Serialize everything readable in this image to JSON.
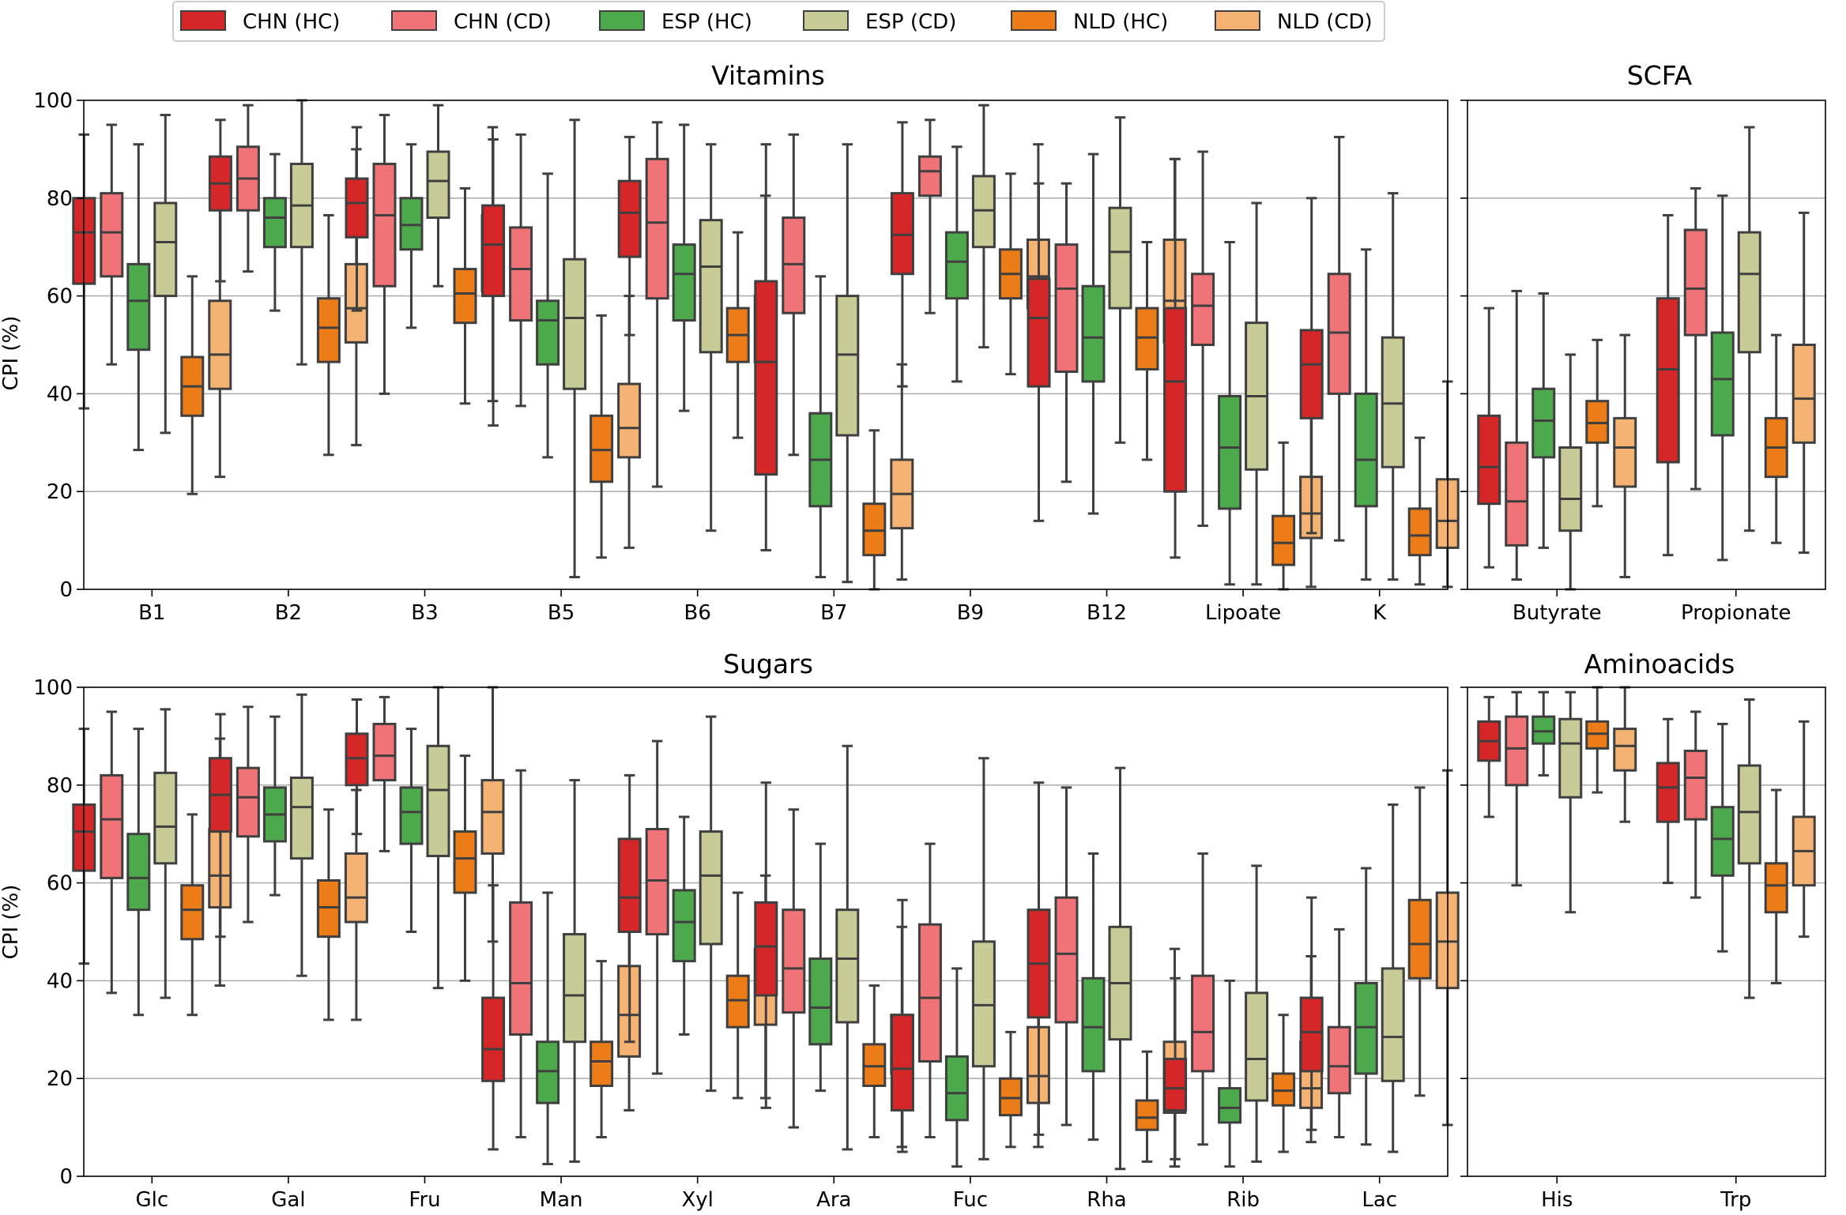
{
  "chart_data": {
    "type": "box",
    "ylabel": "CPI (%)",
    "ylim": [
      0,
      100
    ],
    "yticks": [
      0,
      20,
      40,
      60,
      80,
      100
    ],
    "grid": "horizontal",
    "legend_position": "top-left",
    "series": [
      {
        "name": "CHN (HC)",
        "color": "#d62728"
      },
      {
        "name": "CHN (CD)",
        "color": "#f07377"
      },
      {
        "name": "ESP (HC)",
        "color": "#4caa4c"
      },
      {
        "name": "ESP (CD)",
        "color": "#c7cc96"
      },
      {
        "name": "NLD (HC)",
        "color": "#ec7c17"
      },
      {
        "name": "NLD (CD)",
        "color": "#f4b373"
      }
    ],
    "panels": [
      {
        "title": "Vitamins",
        "categories": [
          "B1",
          "B2",
          "B3",
          "B5",
          "B6",
          "B7",
          "B9",
          "B12",
          "Lipoate",
          "K"
        ],
        "boxes": [
          [
            [
              37,
              62.5,
              73,
              80,
              93
            ],
            [
              46,
              64,
              73,
              81,
              95
            ],
            [
              28.5,
              49,
              59,
              66.5,
              91
            ],
            [
              32,
              60,
              71,
              79,
              97
            ],
            [
              19.5,
              35.5,
              41.5,
              47.5,
              64
            ],
            [
              23,
              41,
              48,
              59,
              80
            ]
          ],
          [
            [
              63,
              77.5,
              83,
              88.5,
              96
            ],
            [
              65,
              77.5,
              84,
              90.5,
              99
            ],
            [
              57,
              70,
              76,
              80,
              89
            ],
            [
              46,
              70,
              78.5,
              87,
              100
            ],
            [
              27.5,
              46.5,
              53.5,
              59.5,
              76.5
            ],
            [
              29.5,
              50.5,
              57.5,
              66.5,
              90
            ]
          ],
          [
            [
              57,
              72,
              79,
              84,
              94.5
            ],
            [
              40,
              62,
              76.5,
              87,
              97
            ],
            [
              53.5,
              69.5,
              74.5,
              80,
              91
            ],
            [
              62,
              76,
              83.5,
              89.5,
              99
            ],
            [
              38,
              54.5,
              60.5,
              65.5,
              82
            ],
            [
              38.5,
              61,
              69,
              76.5,
              94.5
            ]
          ],
          [
            [
              33.5,
              60,
              70.5,
              78.5,
              92
            ],
            [
              37.5,
              55,
              65.5,
              74,
              93
            ],
            [
              27,
              46,
              55,
              59,
              85
            ],
            [
              2.5,
              41,
              55.5,
              67.5,
              96
            ],
            [
              6.5,
              22,
              28.5,
              35.5,
              56
            ],
            [
              8.5,
              27,
              33,
              42,
              60
            ]
          ],
          [
            [
              52,
              68,
              77,
              83.5,
              92.5
            ],
            [
              21,
              59.5,
              75,
              88,
              95.5
            ],
            [
              36.5,
              55,
              64.5,
              70.5,
              95
            ],
            [
              12,
              48.5,
              66,
              75.5,
              91
            ],
            [
              31,
              46.5,
              52,
              57.5,
              73
            ],
            [
              32.5,
              46.5,
              54,
              60,
              80.5
            ]
          ],
          [
            [
              8,
              23.5,
              46.5,
              63,
              91
            ],
            [
              27.5,
              56.5,
              66.5,
              76,
              93
            ],
            [
              2.5,
              17,
              26.5,
              36,
              64
            ],
            [
              1.5,
              31.5,
              48,
              60,
              91
            ],
            [
              0,
              7,
              12,
              17.5,
              32.5
            ],
            [
              2,
              12.5,
              19.5,
              26.5,
              46
            ]
          ],
          [
            [
              41.5,
              64.5,
              72.5,
              81,
              95.5
            ],
            [
              56.5,
              80.5,
              85.5,
              88.5,
              96
            ],
            [
              42.5,
              59.5,
              67,
              73,
              90.5
            ],
            [
              49.5,
              70,
              77.5,
              84.5,
              99
            ],
            [
              44,
              59.5,
              64.5,
              69.5,
              85
            ],
            [
              42,
              57.5,
              64,
              71.5,
              91
            ]
          ],
          [
            [
              14,
              41.5,
              55.5,
              63.5,
              83
            ],
            [
              22,
              44.5,
              61.5,
              70.5,
              83
            ],
            [
              15.5,
              42.5,
              51.5,
              62,
              89
            ],
            [
              30,
              57.5,
              69,
              78,
              96.5
            ],
            [
              26.5,
              45,
              51.5,
              57.5,
              71
            ],
            [
              31,
              50.5,
              59,
              71.5,
              88
            ]
          ],
          [
            [
              6.5,
              20,
              42.5,
              57.5,
              88
            ],
            [
              13,
              50,
              58,
              64.5,
              89.5
            ],
            [
              1,
              16.5,
              29,
              39.5,
              71
            ],
            [
              1,
              24.5,
              39.5,
              54.5,
              79
            ],
            [
              0,
              5,
              9.5,
              15,
              30
            ],
            [
              0.5,
              10.5,
              15.5,
              23,
              40
            ]
          ],
          [
            [
              11.5,
              35,
              46,
              53,
              80
            ],
            [
              10,
              40,
              52.5,
              64.5,
              92.5
            ],
            [
              2,
              17,
              26.5,
              40,
              69.5
            ],
            [
              2,
              25,
              38,
              51.5,
              81
            ],
            [
              1,
              7,
              11,
              16.5,
              31
            ],
            [
              0.5,
              8.5,
              14,
              22.5,
              42.5
            ]
          ]
        ]
      },
      {
        "title": "SCFA",
        "categories": [
          "Butyrate",
          "Propionate"
        ],
        "boxes": [
          [
            [
              4.5,
              17.5,
              25,
              35.5,
              57.5
            ],
            [
              2,
              9,
              18,
              30,
              61
            ],
            [
              8.5,
              27,
              34.5,
              41,
              60.5
            ],
            [
              0,
              12,
              18.5,
              29,
              48
            ],
            [
              17,
              30,
              34,
              38.5,
              51
            ],
            [
              2.5,
              21,
              29,
              35,
              52
            ]
          ],
          [
            [
              7,
              26,
              45,
              59.5,
              76.5
            ],
            [
              20.5,
              52,
              61.5,
              73.5,
              82
            ],
            [
              6,
              31.5,
              43,
              52.5,
              80.5
            ],
            [
              12,
              48.5,
              64.5,
              73,
              94.5
            ],
            [
              9.5,
              23,
              29,
              35,
              52
            ],
            [
              7.5,
              30,
              39,
              50,
              77
            ]
          ]
        ]
      },
      {
        "title": "Sugars",
        "categories": [
          "Glc",
          "Gal",
          "Fru",
          "Man",
          "Xyl",
          "Ara",
          "Fuc",
          "Rha",
          "Rib",
          "Lac"
        ],
        "boxes": [
          [
            [
              43.5,
              62.5,
              70.5,
              76,
              91.5
            ],
            [
              37.5,
              61,
              73,
              82,
              95
            ],
            [
              33,
              54.5,
              61,
              70,
              91.5
            ],
            [
              36.5,
              64,
              71.5,
              82.5,
              95.5
            ],
            [
              33,
              48.5,
              54.5,
              59.5,
              74
            ],
            [
              39,
              55,
              61.5,
              71,
              89.5
            ]
          ],
          [
            [
              49,
              70.5,
              78,
              85.5,
              94.5
            ],
            [
              52,
              69.5,
              77.5,
              83.5,
              96
            ],
            [
              57.5,
              68.5,
              74,
              79.5,
              94
            ],
            [
              41,
              65,
              75.5,
              81.5,
              98.5
            ],
            [
              32,
              49,
              55,
              60.5,
              75
            ],
            [
              32,
              52,
              57,
              66,
              79
            ]
          ],
          [
            [
              70,
              80,
              85.5,
              90.5,
              97.5
            ],
            [
              66.5,
              81,
              86,
              92.5,
              98
            ],
            [
              50,
              68,
              74.5,
              79.5,
              91.5
            ],
            [
              38.5,
              65.5,
              79,
              88,
              100
            ],
            [
              40,
              58,
              65,
              70.5,
              86
            ],
            [
              48,
              66,
              74.5,
              81,
              100
            ]
          ],
          [
            [
              5.5,
              19.5,
              26,
              36.5,
              59.5
            ],
            [
              8,
              29,
              39.5,
              56,
              83
            ],
            [
              2.5,
              15,
              21.5,
              27.5,
              58
            ],
            [
              3,
              27.5,
              37,
              49.5,
              81
            ],
            [
              8,
              18.5,
              23.5,
              27.5,
              44
            ],
            [
              13.5,
              24.5,
              33,
              43,
              68.5
            ]
          ],
          [
            [
              27.5,
              50,
              57,
              69,
              82
            ],
            [
              21,
              49.5,
              60.5,
              71,
              89
            ],
            [
              29,
              44,
              52,
              58.5,
              73.5
            ],
            [
              17.5,
              47.5,
              61.5,
              70.5,
              94
            ],
            [
              16,
              30.5,
              36,
              41,
              58
            ],
            [
              16,
              31,
              40.5,
              46.5,
              61.5
            ]
          ],
          [
            [
              14,
              37,
              47,
              56,
              80.5
            ],
            [
              10,
              33.5,
              42.5,
              54.5,
              75
            ],
            [
              17.5,
              27,
              34.5,
              44.5,
              68
            ],
            [
              5.5,
              31.5,
              44.5,
              54.5,
              88
            ],
            [
              8,
              18.5,
              22.5,
              27,
              39
            ],
            [
              6,
              21,
              26.5,
              33,
              51
            ]
          ],
          [
            [
              5,
              13.5,
              22,
              33,
              56.5
            ],
            [
              8,
              23.5,
              36.5,
              51.5,
              68
            ],
            [
              2,
              11.5,
              17,
              24.5,
              42.5
            ],
            [
              3.5,
              22.5,
              35,
              48,
              85.5
            ],
            [
              6,
              12.5,
              16,
              20,
              29.5
            ],
            [
              6,
              15,
              20.5,
              30.5,
              54
            ]
          ],
          [
            [
              8.5,
              32.5,
              43.5,
              54.5,
              80.5
            ],
            [
              10.5,
              31.5,
              45.5,
              57,
              79.5
            ],
            [
              7.5,
              21.5,
              30.5,
              40.5,
              66
            ],
            [
              1.5,
              28,
              39.5,
              51,
              83.5
            ],
            [
              3,
              9.5,
              12,
              15.5,
              25.5
            ],
            [
              2,
              13,
              18,
              27.5,
              46.5
            ]
          ],
          [
            [
              3.5,
              13.5,
              18,
              24,
              40.5
            ],
            [
              6.5,
              21.5,
              29.5,
              41,
              66
            ],
            [
              2,
              11,
              14,
              18,
              40
            ],
            [
              3,
              15.5,
              24,
              37.5,
              63.5
            ],
            [
              5,
              14.5,
              17.5,
              21,
              33
            ],
            [
              7,
              14,
              18,
              27.5,
              45
            ]
          ],
          [
            [
              9.5,
              21.5,
              29.5,
              36.5,
              57
            ],
            [
              8,
              17,
              22.5,
              30.5,
              50.5
            ],
            [
              6.5,
              21,
              30.5,
              39.5,
              63
            ],
            [
              5,
              19.5,
              28.5,
              42.5,
              76
            ],
            [
              16.5,
              40.5,
              47.5,
              56.5,
              79.5
            ],
            [
              10.5,
              38.5,
              48,
              58,
              83
            ]
          ]
        ]
      },
      {
        "title": "Aminoacids",
        "categories": [
          "His",
          "Trp"
        ],
        "boxes": [
          [
            [
              73.5,
              85,
              89,
              93,
              98
            ],
            [
              59.5,
              80,
              87.5,
              94,
              99
            ],
            [
              82,
              88.5,
              91,
              94,
              99
            ],
            [
              54,
              77.5,
              88.5,
              93.5,
              99
            ],
            [
              78.5,
              87.5,
              90.5,
              93,
              100
            ],
            [
              72.5,
              83,
              88,
              91.5,
              100
            ]
          ],
          [
            [
              60,
              72.5,
              79.5,
              84.5,
              93.5
            ],
            [
              57,
              73,
              81.5,
              87,
              95
            ],
            [
              46,
              61.5,
              69,
              75.5,
              92.5
            ],
            [
              36.5,
              64,
              74.5,
              84,
              97.5
            ],
            [
              39.5,
              54,
              59.5,
              64,
              79
            ],
            [
              49,
              59.5,
              66.5,
              73.5,
              93
            ]
          ]
        ]
      }
    ]
  }
}
